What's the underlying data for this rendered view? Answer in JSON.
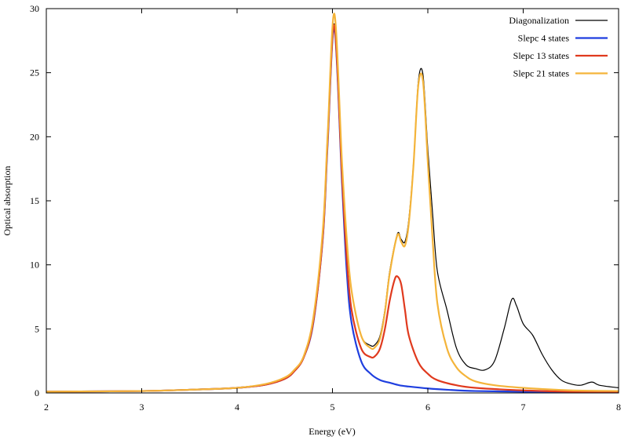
{
  "chart_data": {
    "type": "line",
    "title": "",
    "xlabel": "Energy (eV)",
    "ylabel": "Optical absorption",
    "xlim": [
      2,
      8
    ],
    "ylim": [
      0,
      30
    ],
    "x_ticks": [
      "2",
      "3",
      "4",
      "5",
      "6",
      "7",
      "8"
    ],
    "y_ticks": [
      "0",
      "5",
      "10",
      "15",
      "20",
      "25",
      "30"
    ],
    "grid": false,
    "legend_position": "top-right",
    "series": [
      {
        "name": "Diagonalization",
        "color": "#000000",
        "x": [
          2.0,
          3.0,
          3.5,
          4.0,
          4.3,
          4.5,
          4.6,
          4.7,
          4.8,
          4.9,
          4.95,
          5.02,
          5.1,
          5.15,
          5.2,
          5.3,
          5.4,
          5.45,
          5.5,
          5.55,
          5.6,
          5.68,
          5.72,
          5.76,
          5.8,
          5.85,
          5.9,
          5.95,
          6.0,
          6.05,
          6.1,
          6.2,
          6.3,
          6.4,
          6.5,
          6.6,
          6.7,
          6.8,
          6.88,
          6.93,
          7.0,
          7.1,
          7.2,
          7.3,
          7.4,
          7.5,
          7.6,
          7.72,
          7.8,
          8.0
        ],
        "y": [
          0.1,
          0.15,
          0.25,
          0.4,
          0.7,
          1.2,
          1.8,
          2.9,
          5.8,
          12.5,
          20.0,
          28.8,
          18.0,
          12.0,
          8.0,
          4.5,
          3.7,
          3.8,
          4.5,
          6.5,
          9.5,
          12.4,
          12.0,
          11.8,
          13.5,
          18.0,
          24.3,
          24.8,
          19.0,
          14.0,
          9.5,
          6.5,
          3.5,
          2.2,
          1.9,
          1.8,
          2.5,
          5.0,
          7.3,
          6.8,
          5.4,
          4.5,
          3.0,
          1.8,
          1.0,
          0.7,
          0.6,
          0.85,
          0.6,
          0.4
        ]
      },
      {
        "name": "Slepc 4 states",
        "color": "#1f3fdf",
        "x": [
          2.0,
          3.0,
          3.5,
          4.0,
          4.3,
          4.5,
          4.6,
          4.7,
          4.8,
          4.9,
          4.95,
          5.02,
          5.1,
          5.15,
          5.2,
          5.3,
          5.4,
          5.5,
          5.6,
          5.7,
          5.8,
          6.0,
          6.2,
          6.5,
          7.0,
          7.5,
          8.0
        ],
        "y": [
          0.1,
          0.15,
          0.25,
          0.4,
          0.65,
          1.1,
          1.7,
          2.8,
          5.5,
          12.2,
          19.5,
          28.5,
          16.5,
          9.5,
          5.5,
          2.5,
          1.5,
          1.0,
          0.8,
          0.6,
          0.5,
          0.35,
          0.25,
          0.15,
          0.1,
          0.05,
          0.05
        ]
      },
      {
        "name": "Slepc 13 states",
        "color": "#e03a1e",
        "x": [
          2.0,
          3.0,
          3.5,
          4.0,
          4.3,
          4.5,
          4.6,
          4.7,
          4.8,
          4.9,
          4.95,
          5.02,
          5.1,
          5.15,
          5.2,
          5.3,
          5.4,
          5.45,
          5.5,
          5.55,
          5.6,
          5.65,
          5.68,
          5.72,
          5.76,
          5.8,
          5.9,
          6.0,
          6.1,
          6.3,
          6.5,
          7.0,
          7.5,
          8.0
        ],
        "y": [
          0.1,
          0.15,
          0.25,
          0.4,
          0.65,
          1.1,
          1.7,
          2.8,
          5.6,
          12.3,
          19.8,
          28.7,
          17.0,
          10.5,
          6.5,
          3.5,
          2.8,
          2.9,
          3.5,
          5.0,
          7.2,
          8.8,
          9.1,
          8.5,
          6.5,
          4.5,
          2.4,
          1.5,
          1.0,
          0.6,
          0.4,
          0.2,
          0.1,
          0.1
        ]
      },
      {
        "name": "Slepc 21 states",
        "color": "#f4b43a",
        "x": [
          2.0,
          3.0,
          3.5,
          4.0,
          4.3,
          4.5,
          4.6,
          4.7,
          4.8,
          4.9,
          4.95,
          5.02,
          5.1,
          5.15,
          5.2,
          5.3,
          5.4,
          5.45,
          5.5,
          5.55,
          5.6,
          5.68,
          5.72,
          5.76,
          5.8,
          5.85,
          5.9,
          5.95,
          6.0,
          6.05,
          6.1,
          6.2,
          6.3,
          6.4,
          6.5,
          6.7,
          7.0,
          7.5,
          8.0
        ],
        "y": [
          0.1,
          0.15,
          0.25,
          0.4,
          0.7,
          1.2,
          1.8,
          2.9,
          5.9,
          12.8,
          20.2,
          29.6,
          18.0,
          12.0,
          8.0,
          4.5,
          3.5,
          3.6,
          4.3,
          6.3,
          9.3,
          12.3,
          11.8,
          11.5,
          13.2,
          17.8,
          24.0,
          24.3,
          18.0,
          12.0,
          7.0,
          3.5,
          2.0,
          1.3,
          0.9,
          0.6,
          0.4,
          0.2,
          0.15
        ]
      }
    ]
  }
}
